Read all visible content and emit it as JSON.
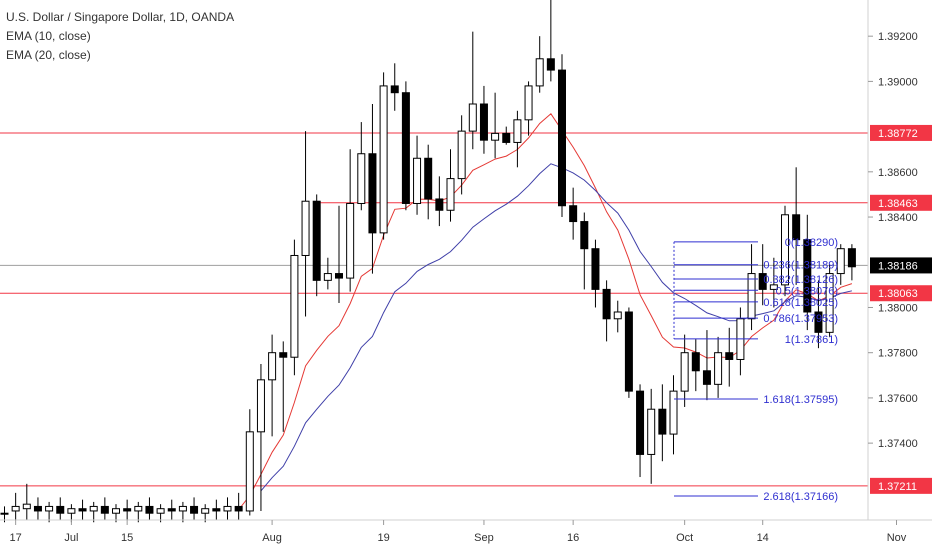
{
  "chart_data": {
    "type": "candlestick",
    "title": "U.S. Dollar / Singapore Dollar, 1D, OANDA",
    "indicators": [
      {
        "label": "EMA (10, close)",
        "color": "#e53935"
      },
      {
        "label": "EMA (20, close)",
        "color": "#3f3fa8"
      }
    ],
    "y_axis": {
      "ticks": [
        "1.39200",
        "1.39000",
        "1.38600",
        "1.38400",
        "1.38000",
        "1.37800",
        "1.37600",
        "1.37400"
      ],
      "range": [
        1.3706,
        1.3936
      ],
      "position": "right"
    },
    "x_axis": {
      "ticks": [
        {
          "label": "17",
          "index": 1
        },
        {
          "label": "Jul",
          "index": 6
        },
        {
          "label": "15",
          "index": 11
        },
        {
          "label": "Aug",
          "index": 24
        },
        {
          "label": "19",
          "index": 34
        },
        {
          "label": "Sep",
          "index": 43
        },
        {
          "label": "16",
          "index": 51
        },
        {
          "label": "Oct",
          "index": 61
        },
        {
          "label": "14",
          "index": 68
        },
        {
          "label": "Nov",
          "index": 80
        }
      ]
    },
    "candles": [
      {
        "o": 1.3709,
        "h": 1.3712,
        "l": 1.3705,
        "c": 1.3709
      },
      {
        "o": 1.371,
        "h": 1.3718,
        "l": 1.3706,
        "c": 1.3712
      },
      {
        "o": 1.3711,
        "h": 1.3722,
        "l": 1.3706,
        "c": 1.3713
      },
      {
        "o": 1.3712,
        "h": 1.3716,
        "l": 1.3706,
        "c": 1.371
      },
      {
        "o": 1.371,
        "h": 1.3714,
        "l": 1.3705,
        "c": 1.3712
      },
      {
        "o": 1.3712,
        "h": 1.3716,
        "l": 1.3706,
        "c": 1.3709
      },
      {
        "o": 1.3709,
        "h": 1.3713,
        "l": 1.3705,
        "c": 1.3711
      },
      {
        "o": 1.3711,
        "h": 1.3715,
        "l": 1.3706,
        "c": 1.371
      },
      {
        "o": 1.371,
        "h": 1.3714,
        "l": 1.3705,
        "c": 1.3712
      },
      {
        "o": 1.3712,
        "h": 1.3716,
        "l": 1.3706,
        "c": 1.3709
      },
      {
        "o": 1.3709,
        "h": 1.3713,
        "l": 1.3705,
        "c": 1.3711
      },
      {
        "o": 1.3711,
        "h": 1.3715,
        "l": 1.3706,
        "c": 1.371
      },
      {
        "o": 1.371,
        "h": 1.3714,
        "l": 1.3705,
        "c": 1.3712
      },
      {
        "o": 1.3712,
        "h": 1.3716,
        "l": 1.3706,
        "c": 1.3709
      },
      {
        "o": 1.3709,
        "h": 1.3713,
        "l": 1.3705,
        "c": 1.3711
      },
      {
        "o": 1.3711,
        "h": 1.3715,
        "l": 1.3706,
        "c": 1.371
      },
      {
        "o": 1.371,
        "h": 1.3714,
        "l": 1.3705,
        "c": 1.3712
      },
      {
        "o": 1.3712,
        "h": 1.3716,
        "l": 1.3706,
        "c": 1.3709
      },
      {
        "o": 1.3709,
        "h": 1.3713,
        "l": 1.3705,
        "c": 1.3711
      },
      {
        "o": 1.3711,
        "h": 1.3715,
        "l": 1.3706,
        "c": 1.371
      },
      {
        "o": 1.371,
        "h": 1.3716,
        "l": 1.3706,
        "c": 1.3712
      },
      {
        "o": 1.3712,
        "h": 1.3718,
        "l": 1.3706,
        "c": 1.371
      },
      {
        "o": 1.371,
        "h": 1.3755,
        "l": 1.3708,
        "c": 1.3745
      },
      {
        "o": 1.3745,
        "h": 1.3775,
        "l": 1.371,
        "c": 1.3768
      },
      {
        "o": 1.3768,
        "h": 1.3788,
        "l": 1.3743,
        "c": 1.378
      },
      {
        "o": 1.378,
        "h": 1.3785,
        "l": 1.3745,
        "c": 1.3778
      },
      {
        "o": 1.3778,
        "h": 1.383,
        "l": 1.377,
        "c": 1.3823
      },
      {
        "o": 1.3823,
        "h": 1.3878,
        "l": 1.3796,
        "c": 1.3847
      },
      {
        "o": 1.3847,
        "h": 1.385,
        "l": 1.3805,
        "c": 1.3812
      },
      {
        "o": 1.3812,
        "h": 1.3822,
        "l": 1.3808,
        "c": 1.3815
      },
      {
        "o": 1.3815,
        "h": 1.3845,
        "l": 1.3802,
        "c": 1.3813
      },
      {
        "o": 1.3813,
        "h": 1.387,
        "l": 1.3807,
        "c": 1.3846
      },
      {
        "o": 1.3846,
        "h": 1.3882,
        "l": 1.3843,
        "c": 1.3868
      },
      {
        "o": 1.3868,
        "h": 1.389,
        "l": 1.3815,
        "c": 1.3833
      },
      {
        "o": 1.3833,
        "h": 1.3904,
        "l": 1.383,
        "c": 1.3898
      },
      {
        "o": 1.3898,
        "h": 1.3908,
        "l": 1.3887,
        "c": 1.3895
      },
      {
        "o": 1.3895,
        "h": 1.39,
        "l": 1.3843,
        "c": 1.3846
      },
      {
        "o": 1.3846,
        "h": 1.3876,
        "l": 1.3841,
        "c": 1.3866
      },
      {
        "o": 1.3866,
        "h": 1.3872,
        "l": 1.3839,
        "c": 1.3848
      },
      {
        "o": 1.3848,
        "h": 1.3858,
        "l": 1.3836,
        "c": 1.3843
      },
      {
        "o": 1.3843,
        "h": 1.387,
        "l": 1.3838,
        "c": 1.3857
      },
      {
        "o": 1.3857,
        "h": 1.3885,
        "l": 1.385,
        "c": 1.3878
      },
      {
        "o": 1.3878,
        "h": 1.3922,
        "l": 1.387,
        "c": 1.389
      },
      {
        "o": 1.389,
        "h": 1.3898,
        "l": 1.3868,
        "c": 1.3874
      },
      {
        "o": 1.3874,
        "h": 1.3895,
        "l": 1.3866,
        "c": 1.3877
      },
      {
        "o": 1.3877,
        "h": 1.388,
        "l": 1.3872,
        "c": 1.3873
      },
      {
        "o": 1.3873,
        "h": 1.3887,
        "l": 1.3862,
        "c": 1.3883
      },
      {
        "o": 1.3883,
        "h": 1.39,
        "l": 1.3876,
        "c": 1.3898
      },
      {
        "o": 1.3898,
        "h": 1.392,
        "l": 1.3895,
        "c": 1.391
      },
      {
        "o": 1.391,
        "h": 1.394,
        "l": 1.39,
        "c": 1.3905
      },
      {
        "o": 1.3905,
        "h": 1.3912,
        "l": 1.384,
        "c": 1.3845
      },
      {
        "o": 1.3845,
        "h": 1.3853,
        "l": 1.383,
        "c": 1.3838
      },
      {
        "o": 1.3838,
        "h": 1.3842,
        "l": 1.3808,
        "c": 1.3826
      },
      {
        "o": 1.3826,
        "h": 1.383,
        "l": 1.38,
        "c": 1.3808
      },
      {
        "o": 1.3808,
        "h": 1.3812,
        "l": 1.3785,
        "c": 1.3795
      },
      {
        "o": 1.3795,
        "h": 1.3803,
        "l": 1.3789,
        "c": 1.3798
      },
      {
        "o": 1.3798,
        "h": 1.38,
        "l": 1.376,
        "c": 1.3763
      },
      {
        "o": 1.3763,
        "h": 1.3766,
        "l": 1.3725,
        "c": 1.3735
      },
      {
        "o": 1.3735,
        "h": 1.3764,
        "l": 1.3722,
        "c": 1.3755
      },
      {
        "o": 1.3755,
        "h": 1.3766,
        "l": 1.3732,
        "c": 1.3744
      },
      {
        "o": 1.3744,
        "h": 1.377,
        "l": 1.3735,
        "c": 1.3763
      },
      {
        "o": 1.3763,
        "h": 1.3788,
        "l": 1.3756,
        "c": 1.378
      },
      {
        "o": 1.378,
        "h": 1.3786,
        "l": 1.3763,
        "c": 1.3772
      },
      {
        "o": 1.3772,
        "h": 1.379,
        "l": 1.3759,
        "c": 1.3766
      },
      {
        "o": 1.3766,
        "h": 1.3787,
        "l": 1.376,
        "c": 1.378
      },
      {
        "o": 1.378,
        "h": 1.3791,
        "l": 1.3765,
        "c": 1.3777
      },
      {
        "o": 1.3777,
        "h": 1.38,
        "l": 1.377,
        "c": 1.3795
      },
      {
        "o": 1.3795,
        "h": 1.3828,
        "l": 1.379,
        "c": 1.3815
      },
      {
        "o": 1.3815,
        "h": 1.3828,
        "l": 1.3801,
        "c": 1.3808
      },
      {
        "o": 1.3808,
        "h": 1.3822,
        "l": 1.38,
        "c": 1.381
      },
      {
        "o": 1.381,
        "h": 1.3845,
        "l": 1.3805,
        "c": 1.3841
      },
      {
        "o": 1.3841,
        "h": 1.3862,
        "l": 1.381,
        "c": 1.383
      },
      {
        "o": 1.383,
        "h": 1.3841,
        "l": 1.379,
        "c": 1.3798
      },
      {
        "o": 1.3798,
        "h": 1.3812,
        "l": 1.3782,
        "c": 1.3789
      },
      {
        "o": 1.3789,
        "h": 1.3819,
        "l": 1.3787,
        "c": 1.3815
      },
      {
        "o": 1.3815,
        "h": 1.3828,
        "l": 1.381,
        "c": 1.3826
      },
      {
        "o": 1.3826,
        "h": 1.3828,
        "l": 1.3812,
        "c": 1.3818
      }
    ],
    "horizontal_levels": [
      {
        "value": 1.38772,
        "label": "1.38772",
        "color": "#f23645"
      },
      {
        "value": 1.38463,
        "label": "1.38463",
        "color": "#f23645"
      },
      {
        "value": 1.38063,
        "label": "1.38063",
        "color": "#f23645"
      },
      {
        "value": 1.37211,
        "label": "1.37211",
        "color": "#f23645"
      }
    ],
    "last_price": {
      "value": 1.38186,
      "label": "1.38186"
    },
    "fibonacci": {
      "color": "#2f2fd0",
      "levels": [
        {
          "ratio": "0",
          "value": 1.3829,
          "label": "0(1.38290)"
        },
        {
          "ratio": "0.236",
          "value": 1.38189,
          "label": "0.236(1.38189)"
        },
        {
          "ratio": "0.382",
          "value": 1.38126,
          "label": "0.382(1.38126)"
        },
        {
          "ratio": "0.5",
          "value": 1.38076,
          "label": "0.5(1.38076)"
        },
        {
          "ratio": "0.618",
          "value": 1.38025,
          "label": "0.618(1.38025)"
        },
        {
          "ratio": "0.786",
          "value": 1.37953,
          "label": "0.786(1.37953)"
        },
        {
          "ratio": "1",
          "value": 1.37861,
          "label": "1(1.37861)"
        },
        {
          "ratio": "1.618",
          "value": 1.37595,
          "label": "1.618(1.37595)"
        },
        {
          "ratio": "2.618",
          "value": 1.37166,
          "label": "2.618(1.37166)"
        }
      ]
    },
    "grid": false,
    "legend_position": "top-left",
    "colors": {
      "candle": "#000000",
      "background": "#ffffff",
      "axis_text": "#333333",
      "level_label_text": "#ffffff",
      "last_price_label": "#000000"
    }
  }
}
